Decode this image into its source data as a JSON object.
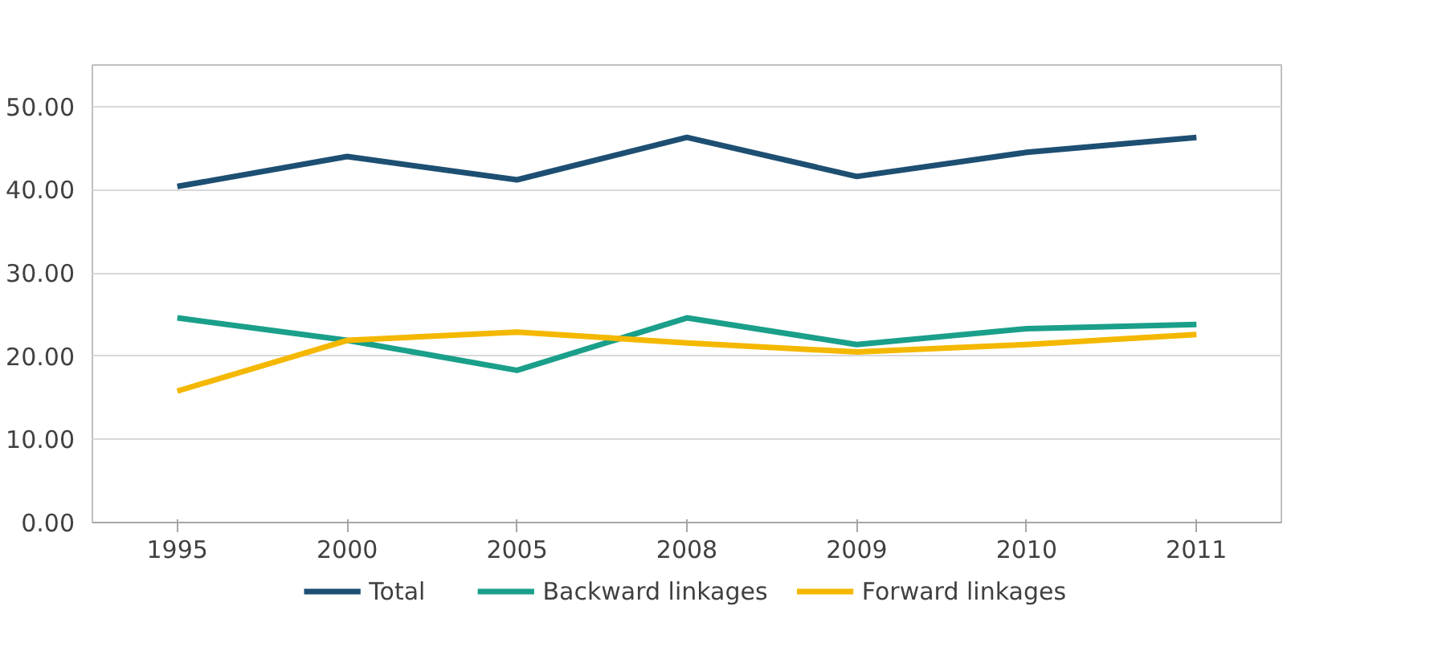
{
  "chart_data": {
    "type": "line",
    "categories": [
      "1995",
      "2000",
      "2005",
      "2008",
      "2009",
      "2010",
      "2011"
    ],
    "series": [
      {
        "name": "Total",
        "color": "#1d4f73",
        "values": [
          40.4,
          44.0,
          41.2,
          46.3,
          41.6,
          44.5,
          46.3
        ]
      },
      {
        "name": "Backward linkages",
        "color": "#1aa08a",
        "values": [
          24.6,
          21.9,
          18.3,
          24.6,
          21.4,
          23.3,
          23.8
        ]
      },
      {
        "name": "Forward linkages",
        "color": "#f5b800",
        "values": [
          15.8,
          21.9,
          22.9,
          21.6,
          20.5,
          21.4,
          22.6
        ]
      }
    ],
    "ylim": [
      0,
      55
    ],
    "yticks": [
      {
        "value": 0,
        "label": "0.00"
      },
      {
        "value": 10,
        "label": "10.00"
      },
      {
        "value": 20,
        "label": "20.00"
      },
      {
        "value": 30,
        "label": "30.00"
      },
      {
        "value": 40,
        "label": "40.00"
      },
      {
        "value": 50,
        "label": "50.00"
      }
    ],
    "grid": "y",
    "legend": "bottom",
    "marker": "none",
    "line_style": "solid"
  }
}
